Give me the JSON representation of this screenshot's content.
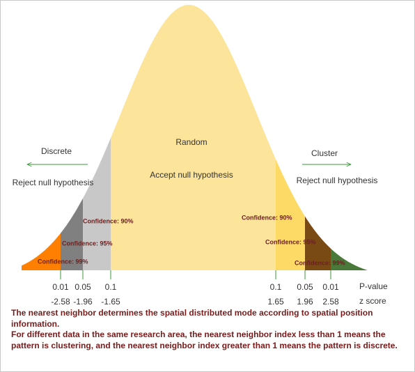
{
  "center": {
    "label": "Random",
    "sublabel": "Accept null hypothesis"
  },
  "left": {
    "direction": "Discrete",
    "label": "Reject null hypothesis"
  },
  "right": {
    "direction": "Cluster",
    "label": "Reject null hypothesis"
  },
  "confidence_labels": [
    "Confidence: 99%",
    "Confidence: 95%",
    "Confidence: 90%",
    "Confidence: 90%",
    "Confidence: 95%",
    "Confidence: 99%"
  ],
  "p_values": [
    "0.01",
    "0.05",
    "0.1",
    "0.1",
    "0.05",
    "0.01"
  ],
  "z_scores": [
    "-2.58",
    "-1.96",
    "-1.65",
    "1.65",
    "1.96",
    "2.58"
  ],
  "axis_labels": {
    "p_value": "P-value",
    "z_score": "z score"
  },
  "description": [
    "The nearest neighbor determines the spatial distributed mode according to spatial position information.",
    "For different data in the same research area, the nearest neighbor index less than 1 means the pattern is clustering, and the nearest neighbor index greater than 1 means the pattern is discrete."
  ]
}
